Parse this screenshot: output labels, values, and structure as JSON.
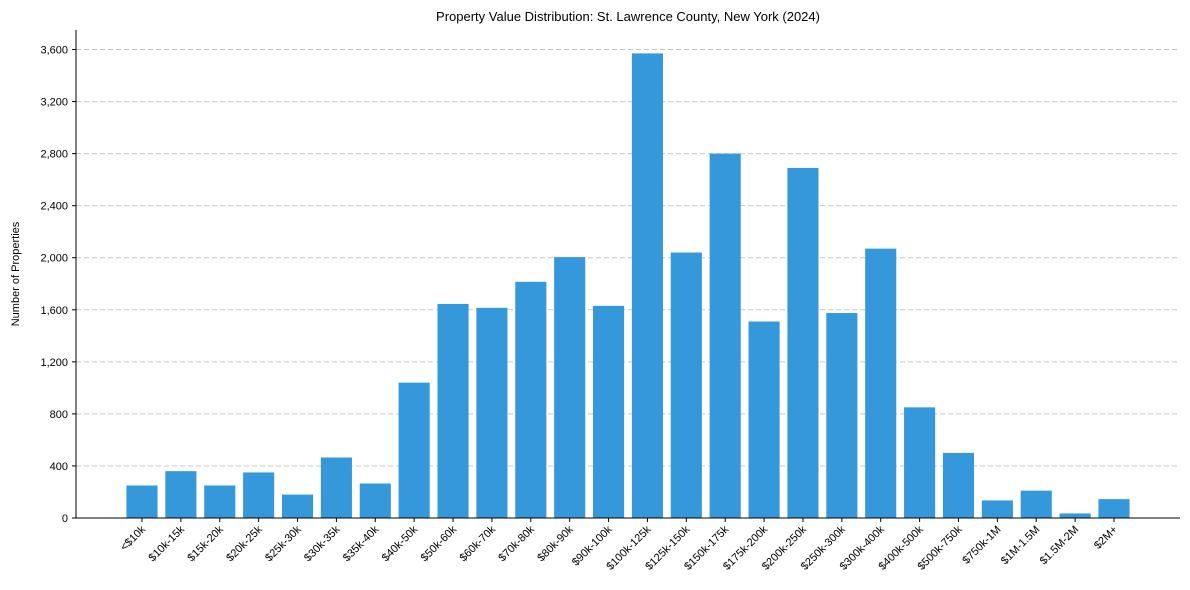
{
  "chart_data": {
    "type": "bar",
    "title": "Property Value Distribution: St. Lawrence County, New York (2024)",
    "xlabel": "",
    "ylabel": "Number of Properties",
    "ylim": [
      0,
      3750
    ],
    "yticks": [
      0,
      400,
      800,
      1200,
      1600,
      2000,
      2400,
      2800,
      3200,
      3600
    ],
    "ytick_labels": [
      "0",
      "400",
      "800",
      "1,200",
      "1,600",
      "2,000",
      "2,400",
      "2,800",
      "3,200",
      "3,600"
    ],
    "grid": "horizontal-dashed",
    "categories": [
      "<$10k",
      "$10k-15k",
      "$15k-20k",
      "$20k-25k",
      "$25k-30k",
      "$30k-35k",
      "$35k-40k",
      "$40k-50k",
      "$50k-60k",
      "$60k-70k",
      "$70k-80k",
      "$80k-90k",
      "$90k-100k",
      "$100k-125k",
      "$125k-150k",
      "$150k-175k",
      "$175k-200k",
      "$200k-250k",
      "$250k-300k",
      "$300k-400k",
      "$400k-500k",
      "$500k-750k",
      "$750k-1M",
      "$1M-1.5M",
      "$1.5M-2M",
      "$2M+"
    ],
    "values": [
      250,
      360,
      250,
      350,
      180,
      465,
      265,
      1040,
      1645,
      1615,
      1815,
      2005,
      1630,
      3570,
      2040,
      2800,
      1510,
      2690,
      1575,
      2070,
      850,
      500,
      135,
      210,
      35,
      145
    ],
    "color": "#3498db"
  }
}
